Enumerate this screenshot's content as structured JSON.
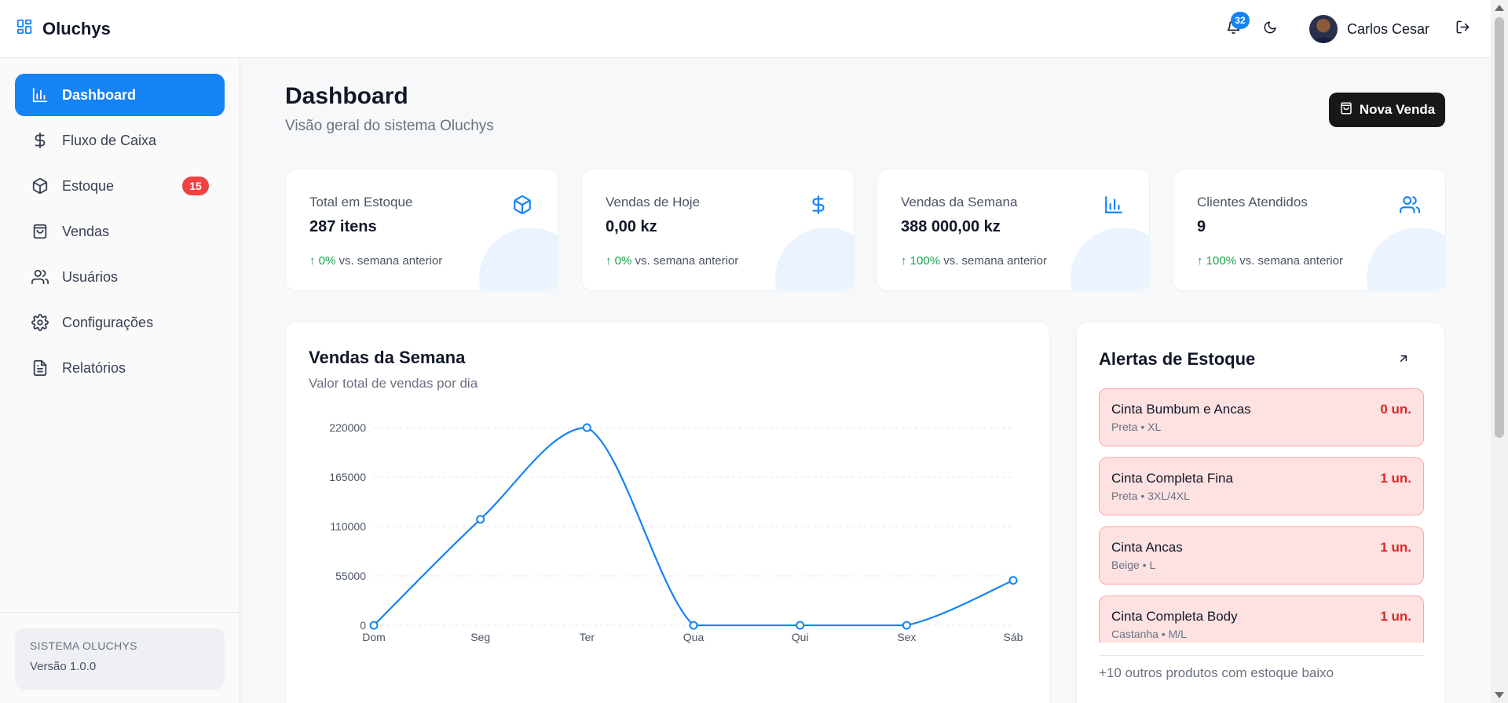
{
  "app": {
    "name": "Oluchys"
  },
  "header": {
    "notifications_count": "32",
    "user_name": "Carlos Cesar"
  },
  "sidebar": {
    "items": [
      {
        "label": "Dashboard",
        "icon": "bar-chart-icon",
        "active": true
      },
      {
        "label": "Fluxo de Caixa",
        "icon": "dollar-icon"
      },
      {
        "label": "Estoque",
        "icon": "box-icon",
        "badge": "15"
      },
      {
        "label": "Vendas",
        "icon": "shopping-bag-icon"
      },
      {
        "label": "Usuários",
        "icon": "users-icon"
      },
      {
        "label": "Configurações",
        "icon": "gear-icon"
      },
      {
        "label": "Relatórios",
        "icon": "file-text-icon"
      }
    ],
    "footer": {
      "system": "SISTEMA OLUCHYS",
      "version": "Versão 1.0.0"
    }
  },
  "page": {
    "title": "Dashboard",
    "subtitle": "Visão geral do sistema Oluchys",
    "primary_action": "Nova Venda"
  },
  "stats": [
    {
      "label": "Total em Estoque",
      "value": "287 itens",
      "trend": "↑ 0%",
      "trend_text": "vs. semana anterior",
      "icon": "box-icon"
    },
    {
      "label": "Vendas de Hoje",
      "value": "0,00 kz",
      "trend": "↑ 0%",
      "trend_text": "vs. semana anterior",
      "icon": "dollar-icon"
    },
    {
      "label": "Vendas da Semana",
      "value": "388 000,00 kz",
      "trend": "↑ 100%",
      "trend_text": "vs. semana anterior",
      "icon": "bar-chart-icon"
    },
    {
      "label": "Clientes Atendidos",
      "value": "9",
      "trend": "↑ 100%",
      "trend_text": "vs. semana anterior",
      "icon": "users-icon"
    }
  ],
  "sales_chart": {
    "title": "Vendas da Semana",
    "subtitle": "Valor total de vendas por dia"
  },
  "chart_data": {
    "type": "line",
    "categories": [
      "Dom",
      "Seg",
      "Ter",
      "Qua",
      "Qui",
      "Sex",
      "Sáb"
    ],
    "values": [
      0,
      118000,
      220000,
      0,
      0,
      0,
      50000
    ],
    "ylim": [
      0,
      220000
    ],
    "yticks": [
      "0",
      "55000",
      "110000",
      "165000",
      "220000"
    ],
    "color": "#1683f5",
    "grid": true
  },
  "alerts": {
    "title": "Alertas de Estoque",
    "items": [
      {
        "name": "Cinta Bumbum e Ancas",
        "detail": "Preta • XL",
        "qty": "0 un."
      },
      {
        "name": "Cinta Completa Fina",
        "detail": "Preta • 3XL/4XL",
        "qty": "1 un."
      },
      {
        "name": "Cinta Ancas",
        "detail": "Beige • L",
        "qty": "1 un."
      },
      {
        "name": "Cinta Completa Body",
        "detail": "Castanha • M/L",
        "qty": "1 un."
      }
    ],
    "footer": "+10 outros produtos com estoque baixo"
  },
  "colors": {
    "accent": "#1683f5",
    "danger": "#ef4444",
    "success": "#16a34a"
  }
}
